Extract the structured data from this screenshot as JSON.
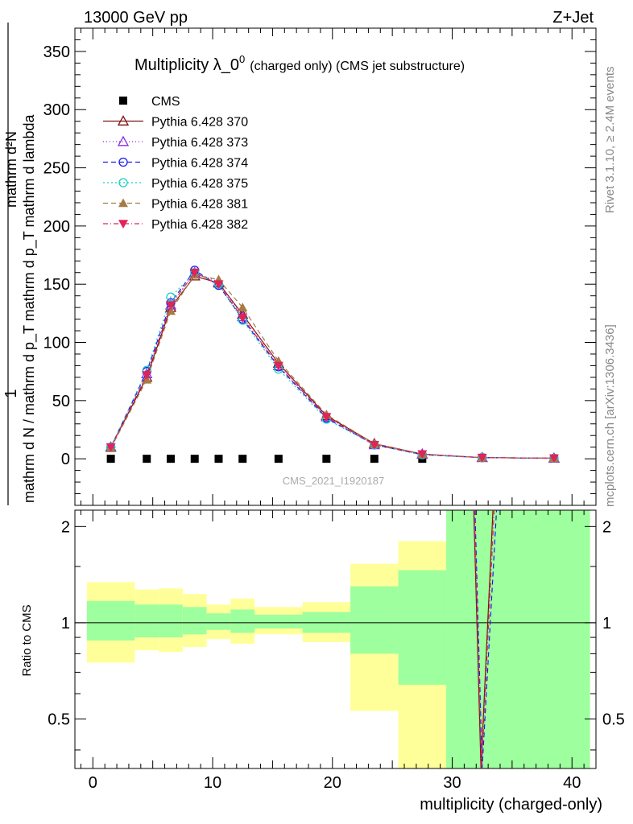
{
  "header": {
    "energy_label": "13000 GeV pp",
    "process_label": "Z+Jet"
  },
  "side_labels": {
    "rivet": "Rivet 3.1.10, ≥ 2.4M events",
    "mcplots": "mcplots.cern.ch [arXiv:1306.3436]"
  },
  "colors": {
    "cms": "#000000",
    "p370": "#7f1212",
    "p373": "#8a2be2",
    "p374": "#1a1af0",
    "p375": "#19d0c0",
    "p381": "#a87b45",
    "p382": "#e0245a",
    "band_inner": "#9dff9d",
    "band_outer": "#ffff99"
  },
  "chart_data": [
    {
      "type": "scatter",
      "title": "Multiplicity λ_0",
      "title_sup": "0",
      "title_suffix": "(charged only) (CMS jet substructure)",
      "ylabel_num": "1",
      "ylabel_den": "mathrm d N / mathrm d p_T mathrm d p_T mathrm d lambda",
      "ylabel_num2": "mathrm d²N",
      "ylabel": "1 / (mathrm d N / mathrm d p_T) · mathrm d²N / (mathrm d p_T mathrm d lambda)",
      "watermark": "CMS_2021_I1920187",
      "xlim": [
        -1.5,
        42
      ],
      "ylim": [
        -40,
        370
      ],
      "yticks": [
        0,
        50,
        100,
        150,
        200,
        250,
        300,
        350
      ],
      "legend_position": "top-left",
      "x": [
        1.5,
        4.5,
        6.5,
        8.5,
        10.5,
        12.5,
        15.5,
        19.5,
        23.5,
        27.5,
        32.5,
        38.5
      ],
      "series": [
        {
          "name": "CMS",
          "key": "cms",
          "marker": "square",
          "values": [
            0,
            0,
            0,
            0,
            0,
            0,
            0,
            0,
            0,
            0,
            null,
            null
          ]
        },
        {
          "name": "Pythia 6.428 370",
          "key": "p370",
          "marker": "triangle-open",
          "dash": "",
          "values": [
            10,
            70,
            130,
            157,
            151,
            124,
            82,
            37,
            13,
            4,
            1,
            0.5
          ]
        },
        {
          "name": "Pythia 6.428 373",
          "key": "p373",
          "marker": "triangle-open",
          "dash": "1,3",
          "values": [
            10,
            73,
            132,
            160,
            152,
            122,
            80,
            36,
            12,
            4,
            1,
            0.5
          ]
        },
        {
          "name": "Pythia 6.428 374",
          "key": "p374",
          "marker": "circle-open",
          "dash": "6,4",
          "values": [
            10,
            75,
            134,
            162,
            149,
            120,
            79,
            35,
            12,
            3.5,
            1,
            0.5
          ]
        },
        {
          "name": "Pythia 6.428 375",
          "key": "p375",
          "marker": "circle-open",
          "dash": "2,3",
          "values": [
            10,
            76,
            139,
            160,
            150,
            119,
            77,
            34,
            12,
            3.5,
            1,
            0.5
          ]
        },
        {
          "name": "Pythia 6.428 381",
          "key": "p381",
          "marker": "triangle-filled",
          "dash": "6,4",
          "values": [
            9,
            68,
            127,
            158,
            154,
            130,
            84,
            38,
            13,
            4,
            1,
            0.5
          ]
        },
        {
          "name": "Pythia 6.428 382",
          "key": "p382",
          "marker": "triangle-down-filled",
          "dash": "6,3,1,3",
          "values": [
            10,
            72,
            132,
            160,
            150,
            121,
            80,
            36,
            12,
            4,
            1,
            0.5
          ]
        }
      ]
    },
    {
      "type": "line",
      "title": "",
      "xlabel": "multiplicity (charged-only)",
      "ylabel": "Ratio to CMS",
      "xlim": [
        -1.5,
        42
      ],
      "ylim": [
        0.35,
        2.25
      ],
      "xticks": [
        0,
        10,
        20,
        30,
        40
      ],
      "yticks": [
        0.5,
        1,
        2
      ],
      "bins": [
        {
          "lo": -0.5,
          "hi": 3.5,
          "inner": [
            0.88,
            1.17
          ],
          "outer": [
            0.75,
            1.34
          ]
        },
        {
          "lo": 3.5,
          "hi": 5.5,
          "inner": [
            0.9,
            1.14
          ],
          "outer": [
            0.82,
            1.27
          ]
        },
        {
          "lo": 5.5,
          "hi": 7.5,
          "inner": [
            0.9,
            1.14
          ],
          "outer": [
            0.81,
            1.28
          ]
        },
        {
          "lo": 7.5,
          "hi": 9.5,
          "inner": [
            0.92,
            1.12
          ],
          "outer": [
            0.84,
            1.23
          ]
        },
        {
          "lo": 9.5,
          "hi": 11.5,
          "inner": [
            0.95,
            1.07
          ],
          "outer": [
            0.89,
            1.14
          ]
        },
        {
          "lo": 11.5,
          "hi": 13.5,
          "inner": [
            0.93,
            1.1
          ],
          "outer": [
            0.86,
            1.19
          ]
        },
        {
          "lo": 13.5,
          "hi": 17.5,
          "inner": [
            0.96,
            1.06
          ],
          "outer": [
            0.92,
            1.12
          ]
        },
        {
          "lo": 17.5,
          "hi": 21.5,
          "inner": [
            0.93,
            1.08
          ],
          "outer": [
            0.87,
            1.16
          ]
        },
        {
          "lo": 21.5,
          "hi": 25.5,
          "inner": [
            0.8,
            1.3
          ],
          "outer": [
            0.53,
            1.53
          ]
        },
        {
          "lo": 25.5,
          "hi": 29.5,
          "inner": [
            0.64,
            1.46
          ],
          "outer": [
            0.35,
            1.8
          ]
        },
        {
          "lo": 29.5,
          "hi": 41.5,
          "inner": [
            0.35,
            2.25
          ],
          "outer": [
            0.35,
            2.25
          ]
        }
      ],
      "ratio_lines": [
        {
          "key": "p370",
          "dash": "",
          "points": [
            [
              31.8,
              2.25
            ],
            [
              32.4,
              0.35
            ],
            [
              33.4,
              2.25
            ]
          ]
        },
        {
          "key": "p374",
          "dash": "6,4",
          "points": [
            [
              31.9,
              2.25
            ],
            [
              32.5,
              0.35
            ],
            [
              33.7,
              2.25
            ]
          ]
        },
        {
          "key": "p382",
          "dash": "6,3,1,3",
          "points": [
            [
              31.85,
              2.25
            ],
            [
              32.45,
              0.35
            ],
            [
              33.5,
              2.25
            ]
          ]
        }
      ]
    }
  ]
}
